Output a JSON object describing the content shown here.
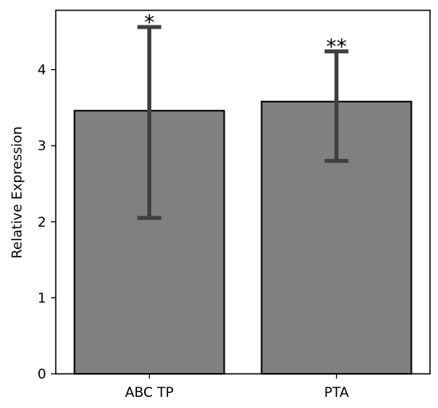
{
  "chart_data": {
    "type": "bar",
    "title": "",
    "xlabel": "",
    "ylabel": "Relative Expression",
    "categories": [
      "ABC TP",
      "PTA"
    ],
    "values": [
      3.46,
      3.58
    ],
    "error_low": [
      2.05,
      2.8
    ],
    "error_high": [
      4.56,
      4.24
    ],
    "significance": [
      "*",
      "**"
    ],
    "ylim": [
      0,
      4.78
    ],
    "yticks": [
      "0",
      "1",
      "2",
      "3",
      "4"
    ],
    "grid": false,
    "legend": "none",
    "colors": {
      "bar": "#808080",
      "bar_edge": "#000000",
      "error_bar": "#404040",
      "axis": "#000000"
    }
  }
}
